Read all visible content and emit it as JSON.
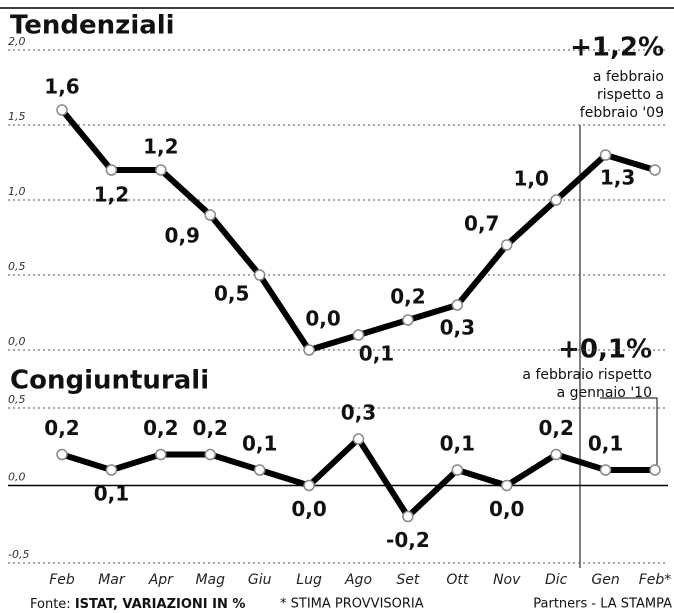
{
  "chart_data": [
    {
      "type": "line",
      "title": "Tendenziali",
      "series": [
        {
          "name": null,
          "color": "#000000",
          "values": [
            1.6,
            1.2,
            1.2,
            0.9,
            0.5,
            0.0,
            0.1,
            0.2,
            0.3,
            0.7,
            1.0,
            1.3,
            1.2
          ],
          "value_labels": [
            "1,6",
            "1,2",
            "1,2",
            "0,9",
            "0,5",
            "0,0",
            "0,1",
            "0,2",
            "0,3",
            "0,7",
            "1,0",
            "1,3",
            null
          ]
        }
      ],
      "ylim": [
        0,
        2
      ],
      "yticks": [
        {
          "value": 0,
          "label": "0,0"
        },
        {
          "value": 0.5,
          "label": "0,5"
        },
        {
          "value": 1,
          "label": "1,0"
        },
        {
          "value": 1.5,
          "label": "1,5"
        },
        {
          "value": 2,
          "label": "2,0"
        }
      ],
      "grid": true,
      "annotations": [
        "+1,2%",
        "a febbraio",
        "rispetto a",
        "febbraio '09"
      ]
    },
    {
      "type": "line",
      "title": "Congiunturali",
      "categories": [
        "Feb",
        "Mar",
        "Apr",
        "Mag",
        "Giu",
        "Lug",
        "Ago",
        "Set",
        "Ott",
        "Nov",
        "Dic",
        "Gen",
        "Feb*"
      ],
      "series": [
        {
          "name": null,
          "color": "#000000",
          "values": [
            0.2,
            0.1,
            0.2,
            0.2,
            0.1,
            0.0,
            0.3,
            -0.2,
            0.1,
            0.0,
            0.2,
            0.1,
            0.1
          ],
          "value_labels": [
            "0,2",
            "0,1",
            "0,2",
            "0,2",
            "0,1",
            "0,0",
            "0,3",
            "-0,2",
            "0,1",
            "0,0",
            "0,2",
            "0,1",
            null
          ]
        }
      ],
      "ylim": [
        -0.5,
        0.5
      ],
      "yticks": [
        {
          "value": -0.5,
          "label": "-0,5"
        },
        {
          "value": 0,
          "label": "0,0"
        },
        {
          "value": 0.5,
          "label": "0,5"
        }
      ],
      "grid": true,
      "annotations": [
        "+0,1%",
        "a febbraio rispetto",
        "a gennaio '10"
      ]
    }
  ],
  "footer": {
    "source_label": "Fonte:",
    "source": "ISTAT, VARIAZIONI IN %",
    "note": "* STIMA PROVVISORIA",
    "credit": "Partners - LA STAMPA"
  }
}
